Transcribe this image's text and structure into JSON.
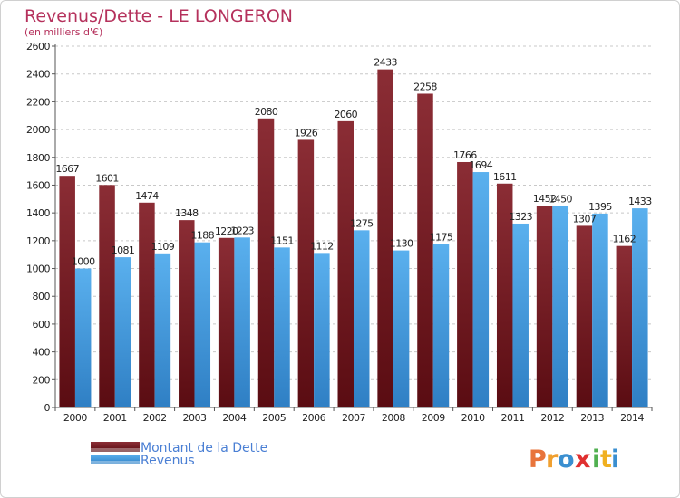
{
  "chart_data": {
    "type": "bar",
    "title": "Revenus/Dette - LE LONGERON",
    "subtitle": "(en milliers d'€)",
    "categories": [
      "2000",
      "2001",
      "2002",
      "2003",
      "2004",
      "2005",
      "2006",
      "2007",
      "2008",
      "2009",
      "2010",
      "2011",
      "2012",
      "2013",
      "2014"
    ],
    "series": [
      {
        "name": "Montant de la Dette",
        "values": [
          1667,
          1601,
          1474,
          1348,
          1220,
          2080,
          1926,
          2060,
          2433,
          2258,
          1766,
          1611,
          1452,
          1307,
          1162
        ],
        "color": "#7a1e26"
      },
      {
        "name": "Revenus",
        "values": [
          1000,
          1081,
          1109,
          1188,
          1223,
          1151,
          1112,
          1275,
          1130,
          1175,
          1694,
          1323,
          1450,
          1395,
          1433
        ],
        "color": "#4aa2e4"
      }
    ],
    "yticks": [
      0,
      200,
      400,
      600,
      800,
      1000,
      1200,
      1400,
      1600,
      1800,
      2000,
      2200,
      2400,
      2600
    ],
    "ylim": [
      0,
      2600
    ],
    "grid": true,
    "legend_placement": "bottom-left"
  },
  "logo": {
    "letters": [
      "P",
      "r",
      "o",
      "x",
      "i",
      "t",
      "i"
    ]
  },
  "colors": {
    "title": "#b5315c",
    "legend_text": "#4a7fd4",
    "logo": [
      "#e8743b",
      "#f0a030",
      "#3a8fd0",
      "#e03030",
      "#50b050",
      "#f0b020",
      "#3a8fd0"
    ]
  }
}
